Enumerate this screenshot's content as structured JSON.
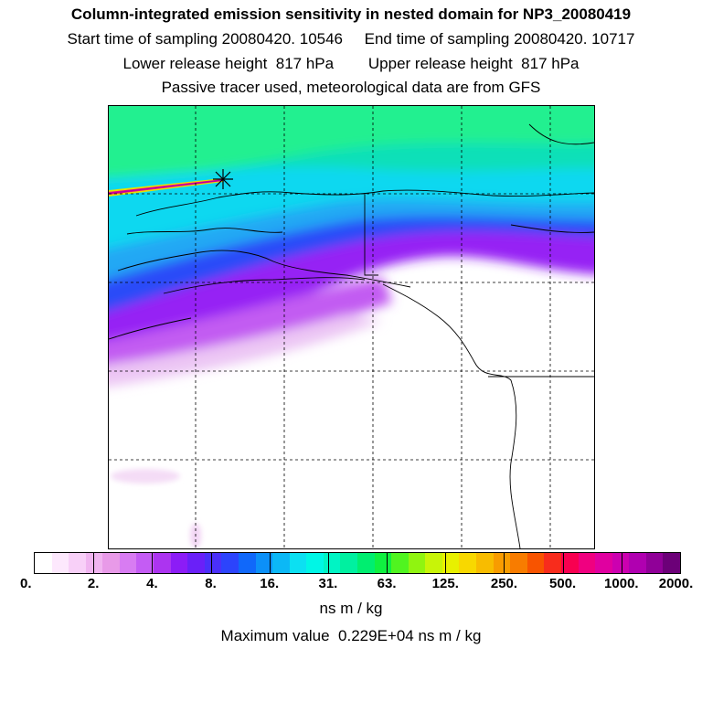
{
  "header": {
    "title": "Column-integrated emission sensitivity in nested domain for NP3_20080419",
    "sampling": "Start time of sampling 20080420. 10546     End time of sampling 20080420. 10717",
    "release": "Lower release height  817 hPa        Upper release height  817 hPa",
    "note": "Passive tracer used, meteorological data are from GFS"
  },
  "map": {
    "field": "emission sensitivity",
    "release_marker": "asterisk",
    "gridlines": "dashed",
    "features": [
      "coastlines",
      "political boundaries",
      "release location"
    ]
  },
  "colorbar": {
    "colors": [
      "#ffffff",
      "#fde8fd",
      "#f8d0f8",
      "#f0b4f0",
      "#e89ae8",
      "#d87cf2",
      "#c45cf4",
      "#ac34f0",
      "#8c1cf6",
      "#6a20f8",
      "#4a30fa",
      "#2c44fc",
      "#1068fa",
      "#0c90f8",
      "#0cb8f6",
      "#0ce0f2",
      "#00f6e6",
      "#00f4c4",
      "#00f0a0",
      "#00ee70",
      "#10f040",
      "#50f420",
      "#90f410",
      "#c8f408",
      "#e8f000",
      "#f8d800",
      "#f8bc00",
      "#f89c00",
      "#f87c00",
      "#f85400",
      "#f82c1c",
      "#f80050",
      "#f00080",
      "#e000a0",
      "#cc00b0",
      "#b000b0",
      "#900098",
      "#6c0078"
    ],
    "ticks": [
      "0.",
      "2.",
      "4.",
      "8.",
      "16.",
      "31.",
      "63.",
      "125.",
      "250.",
      "500.",
      "1000.",
      "2000."
    ],
    "units": "ns m / kg"
  },
  "footer": {
    "max_value": "Maximum value  0.229E+04 ns m / kg"
  }
}
